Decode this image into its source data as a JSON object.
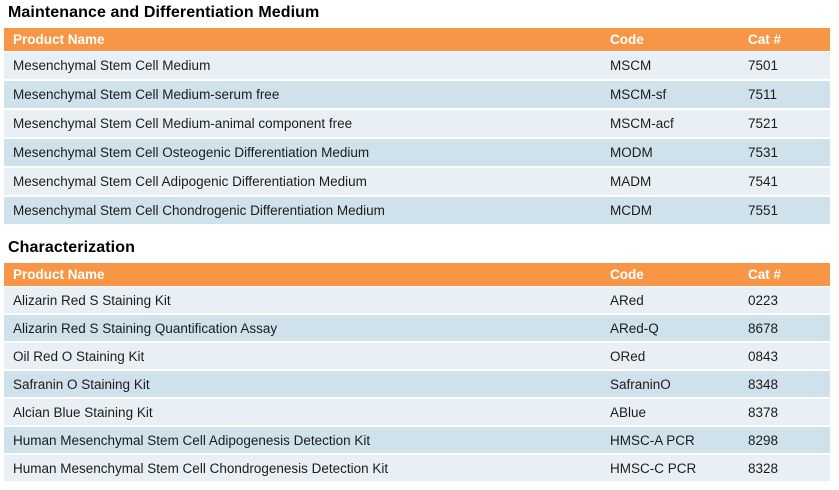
{
  "colors": {
    "header_bg": "#F79646",
    "header_text": "#FFFFFF",
    "row_odd": "#CFE1EA",
    "row_even": "#E9F0F5",
    "body_text": "#1C1C1C",
    "title_text": "#000000",
    "page_bg": "#FFFFFF"
  },
  "tables": [
    {
      "title": "Maintenance and Differentiation Medium",
      "columns": [
        "Product Name",
        "Code",
        "Cat #"
      ],
      "rows": [
        {
          "product": "Mesenchymal Stem Cell Medium",
          "code": "MSCM",
          "cat": "7501"
        },
        {
          "product": "Mesenchymal Stem Cell Medium-serum free",
          "code": "MSCM-sf",
          "cat": "7511"
        },
        {
          "product": "Mesenchymal Stem Cell Medium-animal component free",
          "code": "MSCM-acf",
          "cat": "7521"
        },
        {
          "product": "Mesenchymal Stem Cell Osteogenic Differentiation Medium",
          "code": "MODM",
          "cat": "7531"
        },
        {
          "product": "Mesenchymal Stem Cell Adipogenic Differentiation Medium",
          "code": "MADM",
          "cat": "7541"
        },
        {
          "product": "Mesenchymal Stem Cell Chondrogenic Differentiation Medium",
          "code": "MCDM",
          "cat": "7551"
        }
      ]
    },
    {
      "title": "Characterization",
      "columns": [
        "Product Name",
        "Code",
        "Cat #"
      ],
      "rows": [
        {
          "product": "Alizarin Red S Staining Kit",
          "code": "ARed",
          "cat": "0223"
        },
        {
          "product": "Alizarin Red S Staining Quantification Assay",
          "code": "ARed-Q",
          "cat": "8678"
        },
        {
          "product": "Oil Red O Staining Kit",
          "code": "ORed",
          "cat": "0843"
        },
        {
          "product": "Safranin O Staining Kit",
          "code": "SafraninO",
          "cat": "8348"
        },
        {
          "product": "Alcian Blue Staining Kit",
          "code": "ABlue",
          "cat": "8378"
        },
        {
          "product": "Human Mesenchymal Stem Cell Adipogenesis Detection Kit",
          "code": "HMSC-A PCR",
          "cat": "8298"
        },
        {
          "product": "Human Mesenchymal Stem Cell Chondrogenesis Detection Kit",
          "code": "HMSC-C PCR",
          "cat": "8328"
        }
      ]
    }
  ]
}
